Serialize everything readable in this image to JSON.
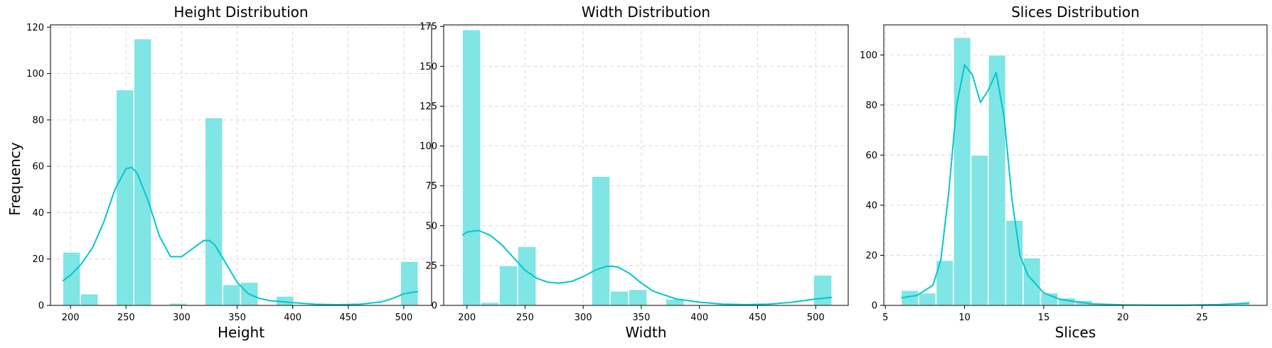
{
  "figure": {
    "shared_ylabel": "Frequency",
    "bar_color": "#7fe5e5",
    "kde_color": "#00c8cc",
    "grid": true
  },
  "chart_data": [
    {
      "type": "bar",
      "title": "Height Distribution",
      "xlabel": "Height",
      "ylabel": "Frequency",
      "xlim": [
        182,
        525
      ],
      "ylim": [
        0,
        121
      ],
      "xticks": [
        200,
        250,
        300,
        350,
        400,
        450,
        500
      ],
      "yticks": [
        0,
        20,
        40,
        60,
        80,
        100,
        120
      ],
      "bins": [
        {
          "x0": 193.0,
          "x1": 209.0,
          "count": 23
        },
        {
          "x0": 209.0,
          "x1": 225.0,
          "count": 5
        },
        {
          "x0": 225.0,
          "x1": 241.0,
          "count": 0
        },
        {
          "x0": 241.0,
          "x1": 257.0,
          "count": 93
        },
        {
          "x0": 257.0,
          "x1": 273.0,
          "count": 115
        },
        {
          "x0": 273.0,
          "x1": 289.0,
          "count": 0
        },
        {
          "x0": 289.0,
          "x1": 305.0,
          "count": 1
        },
        {
          "x0": 305.0,
          "x1": 321.0,
          "count": 0
        },
        {
          "x0": 321.0,
          "x1": 337.0,
          "count": 81
        },
        {
          "x0": 337.0,
          "x1": 353.0,
          "count": 9
        },
        {
          "x0": 353.0,
          "x1": 369.0,
          "count": 10
        },
        {
          "x0": 369.0,
          "x1": 385.0,
          "count": 0
        },
        {
          "x0": 385.0,
          "x1": 401.0,
          "count": 4
        },
        {
          "x0": 401.0,
          "x1": 417.0,
          "count": 0
        },
        {
          "x0": 417.0,
          "x1": 433.0,
          "count": 0
        },
        {
          "x0": 433.0,
          "x1": 449.0,
          "count": 0
        },
        {
          "x0": 449.0,
          "x1": 465.0,
          "count": 0
        },
        {
          "x0": 465.0,
          "x1": 481.0,
          "count": 0
        },
        {
          "x0": 481.0,
          "x1": 497.0,
          "count": 0
        },
        {
          "x0": 497.0,
          "x1": 513.0,
          "count": 19
        }
      ],
      "kde": {
        "x": [
          193,
          200,
          210,
          220,
          230,
          240,
          250,
          255,
          260,
          270,
          280,
          290,
          300,
          310,
          320,
          325,
          330,
          340,
          350,
          360,
          370,
          380,
          390,
          400,
          420,
          440,
          460,
          480,
          490,
          500,
          513
        ],
        "y": [
          10.5,
          13,
          18,
          25,
          36,
          50,
          59,
          59.5,
          57,
          45,
          30,
          21,
          21,
          24.5,
          28,
          28,
          26,
          18,
          10,
          5,
          3,
          2,
          1.6,
          1.2,
          0.5,
          0.3,
          0.5,
          1.5,
          3,
          5,
          6
        ]
      }
    },
    {
      "type": "bar",
      "title": "Width Distribution",
      "xlabel": "Width",
      "ylabel": "",
      "xlim": [
        180,
        528
      ],
      "ylim": [
        0,
        176
      ],
      "xticks": [
        200,
        250,
        300,
        350,
        400,
        450,
        500
      ],
      "yticks": [
        0,
        25,
        50,
        75,
        100,
        125,
        150,
        175
      ],
      "bins": [
        {
          "x0": 196.0,
          "x1": 211.9,
          "count": 173
        },
        {
          "x0": 211.9,
          "x1": 227.8,
          "count": 2
        },
        {
          "x0": 227.8,
          "x1": 243.7,
          "count": 25
        },
        {
          "x0": 243.7,
          "x1": 259.6,
          "count": 37
        },
        {
          "x0": 259.6,
          "x1": 275.5,
          "count": 0
        },
        {
          "x0": 275.5,
          "x1": 291.4,
          "count": 0
        },
        {
          "x0": 291.4,
          "x1": 307.3,
          "count": 0
        },
        {
          "x0": 307.3,
          "x1": 323.2,
          "count": 81
        },
        {
          "x0": 323.2,
          "x1": 339.1,
          "count": 9
        },
        {
          "x0": 339.1,
          "x1": 355.0,
          "count": 10
        },
        {
          "x0": 355.0,
          "x1": 370.9,
          "count": 0
        },
        {
          "x0": 370.9,
          "x1": 386.8,
          "count": 4
        },
        {
          "x0": 386.8,
          "x1": 402.7,
          "count": 0
        },
        {
          "x0": 402.7,
          "x1": 418.6,
          "count": 0
        },
        {
          "x0": 418.6,
          "x1": 434.5,
          "count": 0
        },
        {
          "x0": 434.5,
          "x1": 450.4,
          "count": 0
        },
        {
          "x0": 450.4,
          "x1": 466.3,
          "count": 0
        },
        {
          "x0": 466.3,
          "x1": 482.2,
          "count": 0
        },
        {
          "x0": 482.2,
          "x1": 498.1,
          "count": 0
        },
        {
          "x0": 498.1,
          "x1": 514.0,
          "count": 19
        }
      ],
      "kde": {
        "x": [
          196,
          200,
          210,
          220,
          230,
          240,
          250,
          260,
          270,
          280,
          290,
          300,
          310,
          320,
          325,
          330,
          340,
          350,
          360,
          380,
          400,
          420,
          440,
          460,
          480,
          500,
          514
        ],
        "y": [
          44,
          46,
          47,
          44,
          38,
          30,
          22,
          17,
          14.5,
          14,
          15,
          18,
          22,
          24.5,
          24.5,
          24,
          20,
          14,
          9,
          4,
          2,
          0.8,
          0.5,
          0.8,
          2,
          4,
          5
        ]
      }
    },
    {
      "type": "bar",
      "title": "Slices Distribution",
      "xlabel": "Slices",
      "ylabel": "",
      "xlim": [
        4.9,
        29.1
      ],
      "ylim": [
        0,
        112
      ],
      "xticks": [
        5,
        10,
        15,
        20,
        25
      ],
      "yticks": [
        0,
        20,
        40,
        60,
        80,
        100
      ],
      "bins": [
        {
          "x0": 6.0,
          "x1": 7.1,
          "count": 6
        },
        {
          "x0": 7.1,
          "x1": 8.2,
          "count": 5
        },
        {
          "x0": 8.2,
          "x1": 9.3,
          "count": 18
        },
        {
          "x0": 9.3,
          "x1": 10.4,
          "count": 107
        },
        {
          "x0": 10.4,
          "x1": 11.5,
          "count": 60
        },
        {
          "x0": 11.5,
          "x1": 12.6,
          "count": 100
        },
        {
          "x0": 12.6,
          "x1": 13.7,
          "count": 34
        },
        {
          "x0": 13.7,
          "x1": 14.8,
          "count": 19
        },
        {
          "x0": 14.8,
          "x1": 15.9,
          "count": 5
        },
        {
          "x0": 15.9,
          "x1": 17.0,
          "count": 3
        },
        {
          "x0": 17.0,
          "x1": 18.1,
          "count": 2
        },
        {
          "x0": 18.1,
          "x1": 19.2,
          "count": 0
        },
        {
          "x0": 19.2,
          "x1": 20.3,
          "count": 0
        },
        {
          "x0": 20.3,
          "x1": 21.4,
          "count": 0
        },
        {
          "x0": 21.4,
          "x1": 22.5,
          "count": 0
        },
        {
          "x0": 22.5,
          "x1": 23.6,
          "count": 0
        },
        {
          "x0": 23.6,
          "x1": 24.7,
          "count": 0
        },
        {
          "x0": 24.7,
          "x1": 25.8,
          "count": 0
        },
        {
          "x0": 25.8,
          "x1": 26.9,
          "count": 0
        },
        {
          "x0": 26.9,
          "x1": 28.0,
          "count": 1
        }
      ],
      "kde": {
        "x": [
          6,
          7,
          8,
          8.5,
          9,
          9.5,
          10,
          10.5,
          11,
          11.5,
          12,
          12.5,
          13,
          13.5,
          14,
          15,
          16,
          17,
          18,
          20,
          22,
          24,
          26,
          27,
          28
        ],
        "y": [
          3,
          4,
          8,
          18,
          45,
          80,
          96,
          92,
          81,
          86,
          93,
          75,
          42,
          20,
          12,
          5,
          2.5,
          1.5,
          0.6,
          0.2,
          0.1,
          0.1,
          0.3,
          0.6,
          1
        ]
      }
    }
  ]
}
